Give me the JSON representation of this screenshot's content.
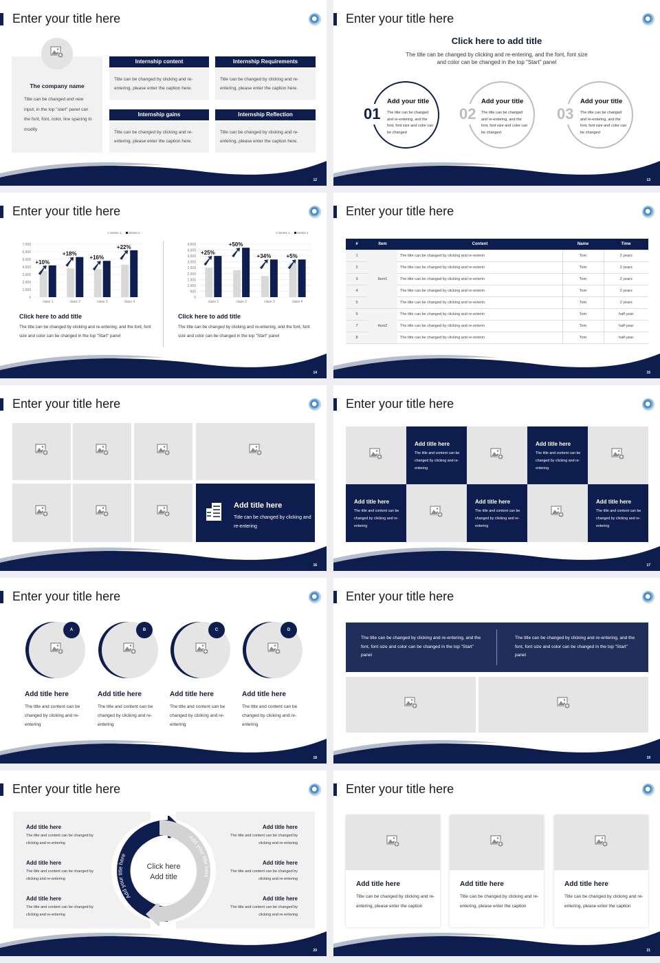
{
  "colors": {
    "navy": "#0d1d4d",
    "gray_bar": "#d9d9d9",
    "panel": "#f1f1f1"
  },
  "slides": [
    {
      "number": "12",
      "title": "Enter your title here",
      "company": {
        "name": "The company name",
        "text": "Title can be changed and new input, in the top \"start\" panel can the font, font, color, line spacing to modify"
      },
      "boxes": [
        {
          "header": "Internship content",
          "text": "Title can be changed by clicking and re-entering, please enter the caption here."
        },
        {
          "header": "Internship Requirements",
          "text": "Title can be changed by clicking and re-entering, please enter the caption here."
        },
        {
          "header": "Internship gains",
          "text": "Title can be changed by clicking and re-entering, please enter the caption here."
        },
        {
          "header": "Internship Reflection",
          "text": "Title can be changed by clicking and re-entering, please enter the caption here."
        }
      ]
    },
    {
      "number": "13",
      "title": "Enter your title here",
      "heading": "Click here to add title",
      "subtitle": "The title can be changed by clicking and re-entering, and the font, font size and color can be changed in the top \"Start\" panel",
      "circles": [
        {
          "num": "01",
          "title": "Add your title",
          "text": "The title can be changed and re-entering, and the font, font size and color can be changed"
        },
        {
          "num": "02",
          "title": "Add your title",
          "text": "The title can be changed and re-entering, and the font, font size and color can be changed"
        },
        {
          "num": "03",
          "title": "Add your title",
          "text": "The title can be changed and re-entering, and the font, font size and color can be changed"
        }
      ]
    },
    {
      "number": "14",
      "title": "Enter your title here",
      "captions": [
        {
          "title": "Click here to add title",
          "text": "The title can be changed by clicking and re-entering, and the font, font size and color can be changed in the top \"Start\" panel"
        },
        {
          "title": "Click here to add title",
          "text": "The title can be changed by clicking and re-entering, and the font, font size and color can be changed in the top \"Start\" panel"
        }
      ]
    },
    {
      "number": "15",
      "title": "Enter your title here",
      "table": {
        "headers": [
          "#",
          "Item",
          "Content",
          "Name",
          "Time"
        ],
        "groups": [
          "Item1",
          "Item2"
        ],
        "rows": [
          [
            "1",
            "The title can be changed by clicking and re-enterin",
            "Tom",
            "2 years"
          ],
          [
            "2",
            "The title can be changed by clicking and re-enterin",
            "Tom",
            "2 years"
          ],
          [
            "3",
            "The title can be changed by clicking and re-enterin",
            "Tom",
            "2 years"
          ],
          [
            "4",
            "The title can be changed by clicking and re-enterin",
            "Tom",
            "2 years"
          ],
          [
            "5",
            "The title can be changed by clicking and re-enterin",
            "Tom",
            "2 years"
          ],
          [
            "6",
            "The title can be changed by clicking and re-enterin",
            "Tom",
            "half-year"
          ],
          [
            "7",
            "The title can be changed by clicking and re-enterin",
            "Tom",
            "half-year"
          ],
          [
            "8",
            "The title can be changed by clicking and re-enterin",
            "Tom",
            "half-year"
          ]
        ]
      }
    },
    {
      "number": "16",
      "title": "Enter your title here",
      "feature": {
        "title": "Add title here",
        "text": "Title can be changed by clicking and re-entering"
      }
    },
    {
      "number": "17",
      "title": "Enter your title here",
      "tiles": [
        {
          "title": "Add title here",
          "text": "The title and content can be changed by clicking and re-entering"
        },
        {
          "title": "Add title here",
          "text": "The title and content can be changed by clicking and re-entering"
        },
        {
          "title": "Add title here",
          "text": "The title and content can be changed by clicking and re-entering"
        },
        {
          "title": "Add title here",
          "text": "The title and content can be changed by clicking and re-entering"
        },
        {
          "title": "Add title here",
          "text": "The title and content can be changed by clicking and re-entering"
        }
      ]
    },
    {
      "number": "18",
      "title": "Enter your title here",
      "items": [
        {
          "badge": "A",
          "title": "Add title here",
          "text": "The title and content can be changed by clicking and re-entering"
        },
        {
          "badge": "B",
          "title": "Add title here",
          "text": "The title and content can be changed by clicking and re-entering"
        },
        {
          "badge": "C",
          "title": "Add title here",
          "text": "The title and content can be changed by clicking and re-entering"
        },
        {
          "badge": "D",
          "title": "Add title here",
          "text": "The title and content can be changed by clicking and re-entering"
        }
      ]
    },
    {
      "number": "19",
      "title": "Enter your title here",
      "banner": [
        "The title can be changed by clicking and re-entering, and the font, font size and color can be changed in the top \"Start\" panel",
        "The title can be changed by clicking and re-entering, and the font, font size and color can be changed in the top \"Start\" panel"
      ]
    },
    {
      "number": "20",
      "title": "Enter your title here",
      "center": {
        "line1": "Click here",
        "line2": "Add title"
      },
      "arc_labels": [
        "Add your title here",
        "Add your title here"
      ],
      "left": [
        {
          "title": "Add title here",
          "text": "The title and content can be changed by clicking and re-entering"
        },
        {
          "title": "Add title here",
          "text": "The title and content can be changed by clicking and re-entering"
        },
        {
          "title": "Add title here",
          "text": "The title and content can be changed by clicking and re-entering"
        }
      ],
      "right": [
        {
          "title": "Add title here",
          "text": "The title and content can be changed by clicking and re-entering"
        },
        {
          "title": "Add title here",
          "text": "The title and content can be changed by clicking and re-entering"
        },
        {
          "title": "Add title here",
          "text": "The title and content can be changed by clicking and re-entering"
        }
      ]
    },
    {
      "number": "21",
      "title": "Enter your title here",
      "cards": [
        {
          "title": "Add title here",
          "text": "Title can be changed by clicking and re-entering, please enter the caption"
        },
        {
          "title": "Add title here",
          "text": "Title can be changed by clicking and re-entering, please enter the caption"
        },
        {
          "title": "Add title here",
          "text": "Title can be changed by clicking and re-entering, please enter the caption"
        }
      ]
    }
  ],
  "chart_data": [
    {
      "type": "bar",
      "categories": [
        "class 1",
        "class 2",
        "class 3",
        "class 4"
      ],
      "series": [
        {
          "name": "Series 1",
          "values": [
            3500,
            3800,
            3700,
            4300
          ]
        },
        {
          "name": "Series 2",
          "values": [
            4200,
            5300,
            4800,
            6200
          ]
        }
      ],
      "annotations": [
        "+10%",
        "+18%",
        "+16%",
        "+22%"
      ],
      "ylim": [
        0,
        7000
      ],
      "yticks": [
        "0",
        "1,000",
        "2,000",
        "3,000",
        "4,000",
        "5,000",
        "6,000",
        "7,000"
      ],
      "legend": "top-right",
      "grid": true
    },
    {
      "type": "bar",
      "categories": [
        "class 1",
        "class 2",
        "class 3",
        "class 4"
      ],
      "series": [
        {
          "name": "Series 1",
          "values": [
            2500,
            2300,
            1800,
            2900
          ]
        },
        {
          "name": "Series 2",
          "values": [
            3500,
            4200,
            3200,
            3200
          ]
        }
      ],
      "annotations": [
        "+25%",
        "+50%",
        "+34%",
        "+5%"
      ],
      "ylim": [
        0,
        4500
      ],
      "yticks": [
        "0",
        "500",
        "1,000",
        "1,500",
        "2,000",
        "2,500",
        "3,000",
        "3,500",
        "4,000",
        "4,500"
      ],
      "legend": "top-right",
      "grid": true
    }
  ]
}
